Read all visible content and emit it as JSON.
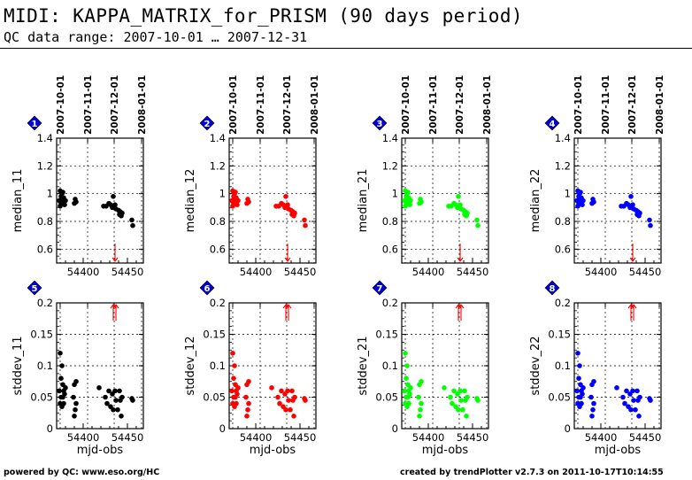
{
  "page": {
    "title": "MIDI: KAPPA_MATRIX_for_PRISM (90 days period)",
    "subtitle": "QC data range: 2007-10-01 … 2007-12-31",
    "footer_left": "powered by QC: www.eso.org/HC",
    "footer_right": "created by trendPlotter v2.7.3 on 2011-10-17T10:14:55"
  },
  "date_ticks": [
    {
      "label": "2007-10-01",
      "mjd": 54374
    },
    {
      "label": "2007-11-01",
      "mjd": 54405
    },
    {
      "label": "2007-12-01",
      "mjd": 54435
    },
    {
      "label": "2008-01-01",
      "mjd": 54466
    }
  ],
  "xlabel_bottom": "mjd-obs",
  "colors": {
    "black": "#000000",
    "red": "#ff0000",
    "green": "#00ff00",
    "blue": "#0000ff",
    "badge": "#0000dd",
    "outlier_marker": "#ff0000"
  },
  "chart_data": [
    {
      "type": "scatter",
      "panel": "1",
      "color": "black",
      "ylabel": "median_11",
      "ylim": [
        0.5,
        1.4
      ],
      "yticks": [
        "0.6",
        "0.8",
        "1",
        "1.2",
        "1.4"
      ],
      "xticks": [
        "54400",
        "54450"
      ],
      "xlim": [
        54370,
        54468
      ],
      "x": [
        54373,
        54374,
        54374,
        54375,
        54375,
        54376,
        54376,
        54377,
        54377,
        54378,
        54379,
        54380,
        54390,
        54391,
        54392,
        54423,
        54426,
        54429,
        54431,
        54433,
        54434,
        54436,
        54437,
        54440,
        54441,
        54442,
        54443,
        54444,
        54455,
        54456
      ],
      "y": [
        0.95,
        1.02,
        0.91,
        0.98,
        0.93,
        1.0,
        0.96,
        0.94,
        1.01,
        0.97,
        0.92,
        0.95,
        0.93,
        0.96,
        0.94,
        0.91,
        0.91,
        0.93,
        0.92,
        0.9,
        0.98,
        0.92,
        0.89,
        0.88,
        0.85,
        0.87,
        0.84,
        0.86,
        0.81,
        0.77
      ],
      "outliers_low": [
        54436
      ]
    },
    {
      "type": "scatter",
      "panel": "2",
      "color": "red",
      "ylabel": "median_12",
      "ylim": [
        0.5,
        1.4
      ],
      "yticks": [
        "0.6",
        "0.8",
        "1",
        "1.2",
        "1.4"
      ],
      "xticks": [
        "54400",
        "54450"
      ],
      "xlim": [
        54370,
        54468
      ],
      "x": [
        54373,
        54374,
        54374,
        54375,
        54375,
        54376,
        54376,
        54377,
        54377,
        54378,
        54379,
        54380,
        54390,
        54391,
        54392,
        54423,
        54426,
        54429,
        54431,
        54433,
        54434,
        54436,
        54437,
        54440,
        54441,
        54442,
        54443,
        54444,
        54455,
        54456
      ],
      "y": [
        0.95,
        1.02,
        0.91,
        0.98,
        0.93,
        1.0,
        0.96,
        0.94,
        1.01,
        0.97,
        0.92,
        0.95,
        0.93,
        0.96,
        0.94,
        0.91,
        0.91,
        0.93,
        0.92,
        0.9,
        0.98,
        0.92,
        0.89,
        0.88,
        0.85,
        0.87,
        0.84,
        0.86,
        0.81,
        0.77
      ],
      "outliers_low": [
        54436
      ]
    },
    {
      "type": "scatter",
      "panel": "3",
      "color": "green",
      "ylabel": "median_21",
      "ylim": [
        0.5,
        1.4
      ],
      "yticks": [
        "0.6",
        "0.8",
        "1",
        "1.2",
        "1.4"
      ],
      "xticks": [
        "54400",
        "54450"
      ],
      "xlim": [
        54370,
        54468
      ],
      "x": [
        54373,
        54374,
        54374,
        54375,
        54375,
        54376,
        54376,
        54377,
        54377,
        54378,
        54379,
        54380,
        54390,
        54391,
        54392,
        54423,
        54426,
        54429,
        54431,
        54433,
        54434,
        54436,
        54437,
        54440,
        54441,
        54442,
        54443,
        54444,
        54455,
        54456
      ],
      "y": [
        0.95,
        1.02,
        0.91,
        0.98,
        0.93,
        1.0,
        0.96,
        0.94,
        1.01,
        0.97,
        0.92,
        0.95,
        0.93,
        0.96,
        0.94,
        0.91,
        0.91,
        0.93,
        0.92,
        0.9,
        0.98,
        0.92,
        0.89,
        0.88,
        0.85,
        0.87,
        0.84,
        0.86,
        0.81,
        0.77
      ],
      "outliers_low": [
        54436
      ]
    },
    {
      "type": "scatter",
      "panel": "4",
      "color": "blue",
      "ylabel": "median_22",
      "ylim": [
        0.5,
        1.4
      ],
      "yticks": [
        "0.6",
        "0.8",
        "1",
        "1.2",
        "1.4"
      ],
      "xticks": [
        "54400",
        "54450"
      ],
      "xlim": [
        54370,
        54468
      ],
      "x": [
        54373,
        54374,
        54374,
        54375,
        54375,
        54376,
        54376,
        54377,
        54377,
        54378,
        54379,
        54380,
        54390,
        54391,
        54392,
        54423,
        54426,
        54429,
        54431,
        54433,
        54434,
        54436,
        54437,
        54440,
        54441,
        54442,
        54443,
        54444,
        54455,
        54456
      ],
      "y": [
        0.95,
        1.02,
        0.91,
        0.98,
        0.93,
        1.0,
        0.96,
        0.94,
        1.01,
        0.97,
        0.92,
        0.95,
        0.93,
        0.96,
        0.94,
        0.91,
        0.91,
        0.93,
        0.92,
        0.9,
        0.98,
        0.92,
        0.89,
        0.88,
        0.85,
        0.87,
        0.84,
        0.86,
        0.81,
        0.77
      ],
      "outliers_low": [
        54436
      ]
    },
    {
      "type": "scatter",
      "panel": "5",
      "color": "black",
      "ylabel": "stddev_11",
      "xlabel": "mjd-obs",
      "ylim": [
        0,
        0.2
      ],
      "yticks": [
        "0",
        "0.05",
        "0.1",
        "0.15",
        "0.2"
      ],
      "xticks": [
        "54400",
        "54450"
      ],
      "xlim": [
        54370,
        54468
      ],
      "x": [
        54373,
        54374,
        54374,
        54375,
        54375,
        54376,
        54376,
        54377,
        54377,
        54378,
        54378,
        54379,
        54380,
        54389,
        54390,
        54390,
        54391,
        54392,
        54392,
        54418,
        54425,
        54427,
        54429,
        54431,
        54433,
        54434,
        54436,
        54437,
        54439,
        54441,
        54442,
        54443,
        54444,
        54455,
        54456
      ],
      "y": [
        0.06,
        0.12,
        0.04,
        0.08,
        0.05,
        0.1,
        0.035,
        0.07,
        0.05,
        0.06,
        0.04,
        0.055,
        0.065,
        0.05,
        0.07,
        0.02,
        0.03,
        0.04,
        0.075,
        0.065,
        0.05,
        0.04,
        0.06,
        0.035,
        0.055,
        0.03,
        0.06,
        0.045,
        0.03,
        0.06,
        0.045,
        0.02,
        0.05,
        0.048,
        0.045
      ],
      "outliers_high": [
        54434,
        54437
      ]
    },
    {
      "type": "scatter",
      "panel": "6",
      "color": "red",
      "ylabel": "stddev_12",
      "xlabel": "mjd-obs",
      "ylim": [
        0,
        0.2
      ],
      "yticks": [
        "0",
        "0.05",
        "0.1",
        "0.15",
        "0.2"
      ],
      "xticks": [
        "54400",
        "54450"
      ],
      "xlim": [
        54370,
        54468
      ],
      "x": [
        54373,
        54374,
        54374,
        54375,
        54375,
        54376,
        54376,
        54377,
        54377,
        54378,
        54378,
        54379,
        54380,
        54389,
        54390,
        54390,
        54391,
        54392,
        54392,
        54418,
        54425,
        54427,
        54429,
        54431,
        54433,
        54434,
        54436,
        54437,
        54439,
        54441,
        54442,
        54443,
        54444,
        54455,
        54456
      ],
      "y": [
        0.06,
        0.12,
        0.04,
        0.08,
        0.05,
        0.1,
        0.035,
        0.07,
        0.05,
        0.06,
        0.04,
        0.055,
        0.065,
        0.05,
        0.07,
        0.02,
        0.03,
        0.04,
        0.075,
        0.065,
        0.05,
        0.04,
        0.06,
        0.035,
        0.055,
        0.03,
        0.06,
        0.045,
        0.03,
        0.06,
        0.045,
        0.02,
        0.05,
        0.048,
        0.045
      ],
      "outliers_high": [
        54434,
        54437
      ]
    },
    {
      "type": "scatter",
      "panel": "7",
      "color": "green",
      "ylabel": "stddev_21",
      "xlabel": "mjd-obs",
      "ylim": [
        0,
        0.2
      ],
      "yticks": [
        "0",
        "0.05",
        "0.1",
        "0.15",
        "0.2"
      ],
      "xticks": [
        "54400",
        "54450"
      ],
      "xlim": [
        54370,
        54468
      ],
      "x": [
        54373,
        54374,
        54374,
        54375,
        54375,
        54376,
        54376,
        54377,
        54377,
        54378,
        54378,
        54379,
        54380,
        54389,
        54390,
        54390,
        54391,
        54392,
        54392,
        54418,
        54425,
        54427,
        54429,
        54431,
        54433,
        54434,
        54436,
        54437,
        54439,
        54441,
        54442,
        54443,
        54444,
        54455,
        54456
      ],
      "y": [
        0.06,
        0.12,
        0.04,
        0.08,
        0.05,
        0.1,
        0.035,
        0.07,
        0.05,
        0.06,
        0.04,
        0.055,
        0.065,
        0.05,
        0.07,
        0.02,
        0.03,
        0.04,
        0.075,
        0.065,
        0.05,
        0.04,
        0.06,
        0.035,
        0.055,
        0.03,
        0.06,
        0.045,
        0.03,
        0.06,
        0.045,
        0.02,
        0.05,
        0.048,
        0.045
      ],
      "outliers_high": [
        54434,
        54437
      ]
    },
    {
      "type": "scatter",
      "panel": "8",
      "color": "blue",
      "ylabel": "stddev_22",
      "xlabel": "mjd-obs",
      "ylim": [
        0,
        0.2
      ],
      "yticks": [
        "0",
        "0.05",
        "0.1",
        "0.15",
        "0.2"
      ],
      "xticks": [
        "54400",
        "54450"
      ],
      "xlim": [
        54370,
        54468
      ],
      "x": [
        54373,
        54374,
        54374,
        54375,
        54375,
        54376,
        54376,
        54377,
        54377,
        54378,
        54378,
        54379,
        54380,
        54389,
        54390,
        54390,
        54391,
        54392,
        54392,
        54418,
        54425,
        54427,
        54429,
        54431,
        54433,
        54434,
        54436,
        54437,
        54439,
        54441,
        54442,
        54443,
        54444,
        54455,
        54456
      ],
      "y": [
        0.06,
        0.12,
        0.04,
        0.08,
        0.05,
        0.1,
        0.035,
        0.07,
        0.05,
        0.06,
        0.04,
        0.055,
        0.065,
        0.05,
        0.07,
        0.02,
        0.03,
        0.04,
        0.075,
        0.065,
        0.05,
        0.04,
        0.06,
        0.035,
        0.055,
        0.03,
        0.06,
        0.045,
        0.03,
        0.06,
        0.045,
        0.02,
        0.05,
        0.048,
        0.045
      ],
      "outliers_high": [
        54434,
        54437
      ]
    }
  ]
}
